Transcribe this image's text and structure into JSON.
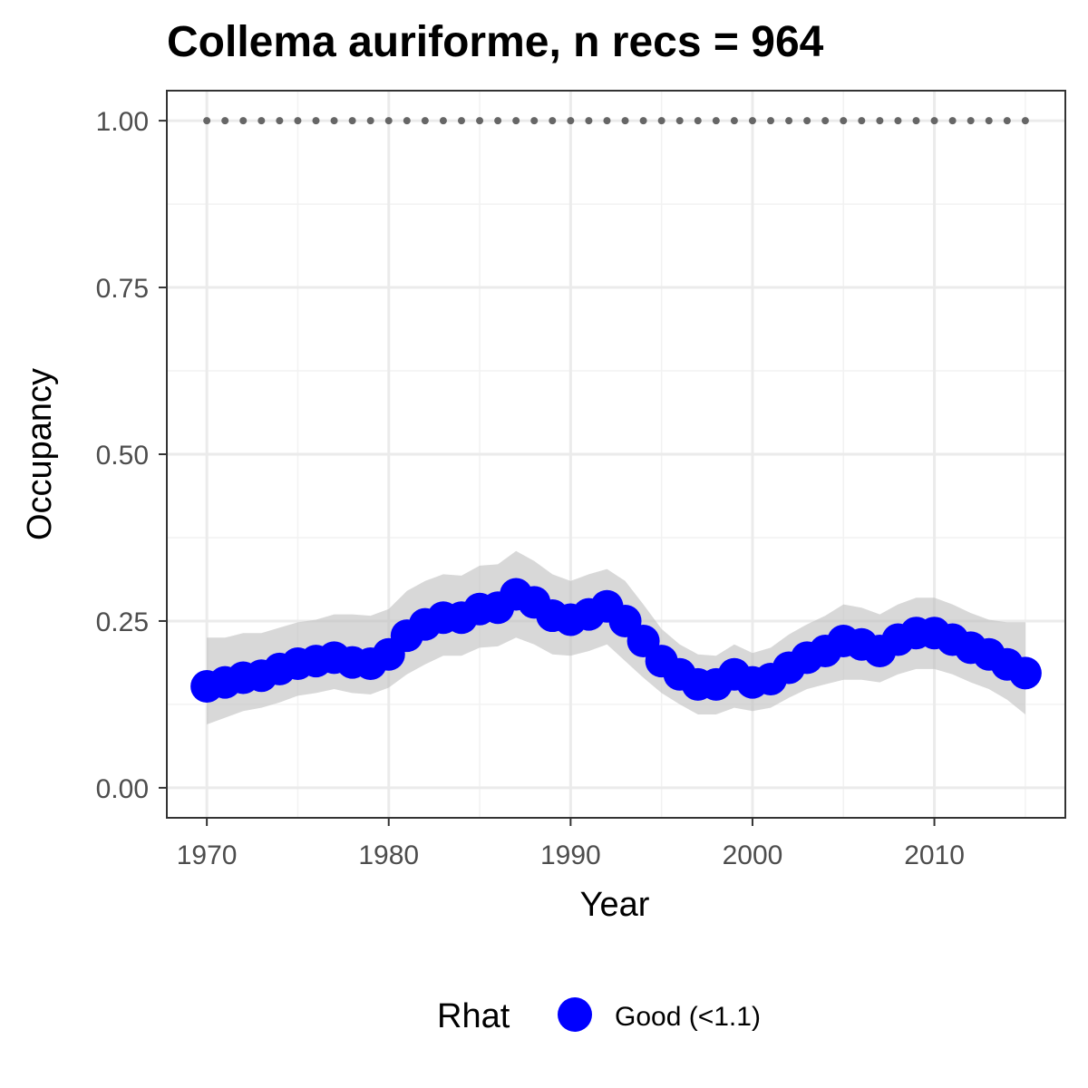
{
  "chart_data": {
    "type": "line",
    "title": "Collema auriforme, n recs = 964",
    "xlabel": "Year",
    "ylabel": "Occupancy",
    "xlim": [
      1967.8,
      2017.2
    ],
    "ylim": [
      -0.045,
      1.045
    ],
    "x_ticks": [
      1970,
      1980,
      1990,
      2000,
      2010
    ],
    "x_tick_labels": [
      "1970",
      "1980",
      "1990",
      "2000",
      "2010"
    ],
    "y_ticks": [
      0.0,
      0.25,
      0.5,
      0.75,
      1.0
    ],
    "y_tick_labels": [
      "0.00",
      "0.25",
      "0.50",
      "0.75",
      "1.00"
    ],
    "grid": true,
    "legend_position": "bottom",
    "legend": {
      "title": "Rhat",
      "entries": [
        {
          "label": "Good (<1.1)",
          "color": "#0000ff"
        }
      ]
    },
    "series": [
      {
        "name": "Good (<1.1)",
        "color": "#0000ff",
        "x": [
          1970,
          1971,
          1972,
          1973,
          1974,
          1975,
          1976,
          1977,
          1978,
          1979,
          1980,
          1981,
          1982,
          1983,
          1984,
          1985,
          1986,
          1987,
          1988,
          1989,
          1990,
          1991,
          1992,
          1993,
          1994,
          1995,
          1996,
          1997,
          1998,
          1999,
          2000,
          2001,
          2002,
          2003,
          2004,
          2005,
          2006,
          2007,
          2008,
          2009,
          2010,
          2011,
          2012,
          2013,
          2014,
          2015
        ],
        "y": [
          0.152,
          0.158,
          0.165,
          0.168,
          0.178,
          0.186,
          0.19,
          0.195,
          0.188,
          0.186,
          0.2,
          0.228,
          0.245,
          0.255,
          0.255,
          0.268,
          0.27,
          0.29,
          0.278,
          0.258,
          0.252,
          0.26,
          0.272,
          0.25,
          0.22,
          0.19,
          0.17,
          0.155,
          0.155,
          0.17,
          0.158,
          0.163,
          0.18,
          0.195,
          0.205,
          0.22,
          0.215,
          0.205,
          0.222,
          0.232,
          0.232,
          0.222,
          0.21,
          0.2,
          0.185,
          0.172
        ],
        "lower": [
          0.095,
          0.105,
          0.115,
          0.12,
          0.128,
          0.138,
          0.142,
          0.148,
          0.142,
          0.14,
          0.15,
          0.17,
          0.185,
          0.198,
          0.198,
          0.21,
          0.212,
          0.225,
          0.215,
          0.2,
          0.198,
          0.205,
          0.215,
          0.19,
          0.165,
          0.142,
          0.125,
          0.11,
          0.11,
          0.12,
          0.115,
          0.12,
          0.135,
          0.148,
          0.155,
          0.162,
          0.162,
          0.158,
          0.17,
          0.178,
          0.178,
          0.17,
          0.158,
          0.148,
          0.132,
          0.11
        ],
        "upper": [
          0.225,
          0.225,
          0.232,
          0.232,
          0.24,
          0.248,
          0.252,
          0.26,
          0.26,
          0.258,
          0.268,
          0.295,
          0.31,
          0.32,
          0.318,
          0.333,
          0.335,
          0.355,
          0.34,
          0.32,
          0.31,
          0.32,
          0.328,
          0.31,
          0.275,
          0.238,
          0.215,
          0.2,
          0.198,
          0.215,
          0.202,
          0.21,
          0.23,
          0.245,
          0.258,
          0.275,
          0.27,
          0.26,
          0.275,
          0.285,
          0.285,
          0.275,
          0.262,
          0.252,
          0.248,
          0.248
        ]
      },
      {
        "name": "",
        "color": "#666666",
        "style": "dotted",
        "x": [
          1970,
          1971,
          1972,
          1973,
          1974,
          1975,
          1976,
          1977,
          1978,
          1979,
          1980,
          1981,
          1982,
          1983,
          1984,
          1985,
          1986,
          1987,
          1988,
          1989,
          1990,
          1991,
          1992,
          1993,
          1994,
          1995,
          1996,
          1997,
          1998,
          1999,
          2000,
          2001,
          2002,
          2003,
          2004,
          2005,
          2006,
          2007,
          2008,
          2009,
          2010,
          2011,
          2012,
          2013,
          2014,
          2015
        ],
        "y": [
          1,
          1,
          1,
          1,
          1,
          1,
          1,
          1,
          1,
          1,
          1,
          1,
          1,
          1,
          1,
          1,
          1,
          1,
          1,
          1,
          1,
          1,
          1,
          1,
          1,
          1,
          1,
          1,
          1,
          1,
          1,
          1,
          1,
          1,
          1,
          1,
          1,
          1,
          1,
          1,
          1,
          1,
          1,
          1,
          1,
          1
        ]
      }
    ]
  }
}
